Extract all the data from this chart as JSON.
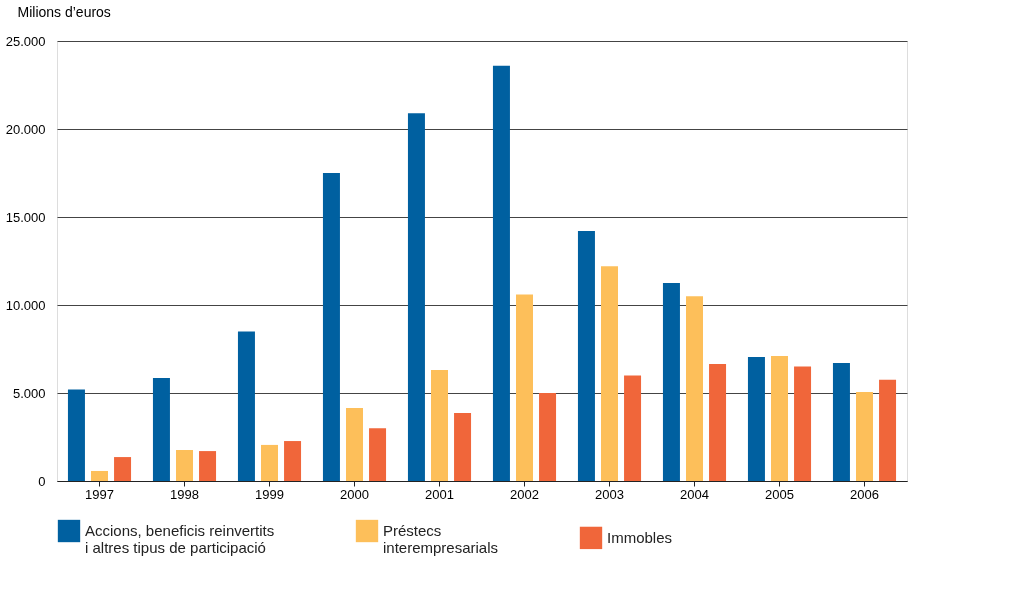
{
  "chart_data": {
    "type": "bar",
    "ylabel": "Milions d’euros",
    "categories": [
      "1997",
      "1998",
      "1999",
      "2000",
      "2001",
      "2002",
      "2003",
      "2004",
      "2005",
      "2006"
    ],
    "series": [
      {
        "name": "Accions, beneficis reinvertits i altres tipus de participació",
        "color": "#0060a0",
        "values": [
          5200,
          5850,
          8500,
          17500,
          20900,
          23600,
          14200,
          11250,
          7050,
          6700
        ]
      },
      {
        "name": "Préstecs interempresarials",
        "color": "#fdbf5a",
        "values": [
          570,
          1760,
          2050,
          4150,
          6300,
          10600,
          12200,
          10500,
          7100,
          5050
        ]
      },
      {
        "name": "Immobles",
        "color": "#f0663a",
        "values": [
          1360,
          1700,
          2270,
          3000,
          3860,
          5000,
          6000,
          6650,
          6500,
          5750
        ]
      }
    ],
    "ylim": [
      0,
      25000
    ],
    "yticks": [
      0,
      {
        "value": 5000,
        "label": "5.000"
      },
      {
        "value": 10000,
        "label": "10.000"
      },
      {
        "value": 15000,
        "label": "15.000"
      },
      {
        "value": 20000,
        "label": "20.000"
      },
      {
        "value": 25000,
        "label": "25.000"
      }
    ],
    "grid": "y",
    "legend": "bottom"
  }
}
